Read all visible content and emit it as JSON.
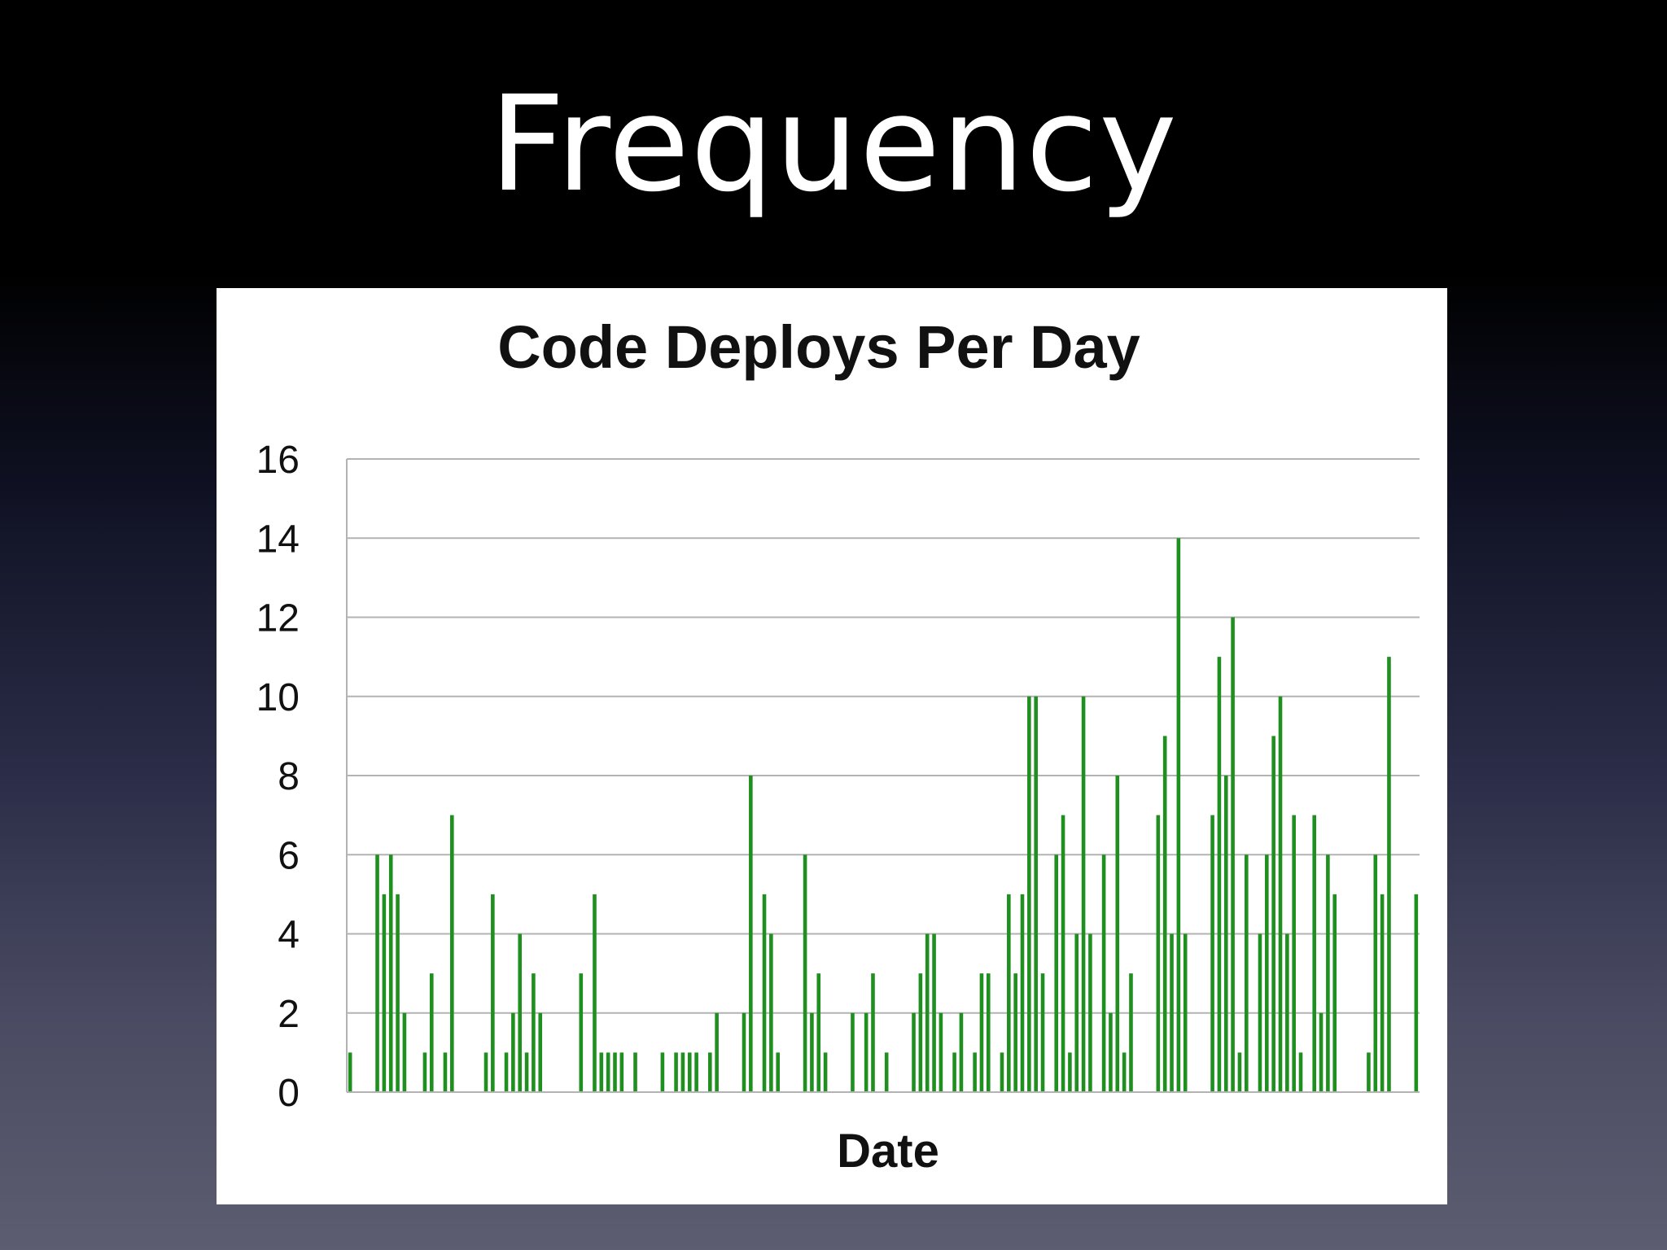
{
  "slide": {
    "title": "Frequency"
  },
  "chart_data": {
    "type": "bar",
    "title": "Code Deploys Per Day",
    "xlabel": "Date",
    "ylabel": "",
    "ylim": [
      0,
      16
    ],
    "yticks": [
      0,
      2,
      4,
      6,
      8,
      10,
      12,
      14,
      16
    ],
    "grid": true,
    "legend": "none",
    "bar_color": "#1f8f1f",
    "grid_color": "#b3b3b3",
    "values": [
      1,
      0,
      0,
      0,
      6,
      5,
      6,
      5,
      2,
      0,
      0,
      1,
      3,
      0,
      1,
      7,
      0,
      0,
      0,
      0,
      1,
      5,
      0,
      1,
      2,
      4,
      1,
      3,
      2,
      0,
      0,
      0,
      0,
      0,
      3,
      0,
      5,
      1,
      1,
      1,
      1,
      0,
      1,
      0,
      0,
      0,
      1,
      0,
      1,
      1,
      1,
      1,
      0,
      1,
      2,
      0,
      0,
      0,
      2,
      8,
      0,
      5,
      4,
      1,
      0,
      0,
      0,
      6,
      2,
      3,
      1,
      0,
      0,
      0,
      2,
      0,
      2,
      3,
      0,
      1,
      0,
      0,
      0,
      2,
      3,
      4,
      4,
      2,
      0,
      1,
      2,
      0,
      1,
      3,
      3,
      0,
      1,
      5,
      3,
      5,
      10,
      10,
      3,
      0,
      6,
      7,
      1,
      4,
      10,
      4,
      0,
      6,
      2,
      8,
      1,
      3,
      0,
      0,
      0,
      7,
      9,
      4,
      14,
      4,
      0,
      0,
      0,
      7,
      11,
      8,
      12,
      1,
      6,
      0,
      4,
      6,
      9,
      10,
      4,
      7,
      1,
      0,
      7,
      2,
      6,
      5,
      0,
      0,
      0,
      0,
      1,
      6,
      5,
      11,
      0,
      0,
      0,
      5
    ]
  }
}
